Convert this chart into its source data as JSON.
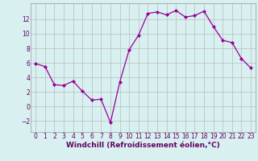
{
  "x": [
    0,
    1,
    2,
    3,
    4,
    5,
    6,
    7,
    8,
    9,
    10,
    11,
    12,
    13,
    14,
    15,
    16,
    17,
    18,
    19,
    20,
    21,
    22,
    23
  ],
  "y": [
    5.9,
    5.5,
    3.0,
    2.9,
    3.5,
    2.1,
    0.9,
    1.0,
    -2.2,
    3.4,
    7.8,
    9.8,
    12.8,
    13.0,
    12.6,
    13.2,
    12.3,
    12.5,
    13.1,
    11.0,
    9.1,
    8.8,
    6.6,
    5.3
  ],
  "line_color": "#990099",
  "marker": "D",
  "markersize": 2,
  "linewidth": 0.9,
  "xlabel": "Windchill (Refroidissement éolien,°C)",
  "xlabel_fontsize": 6.5,
  "bg_color": "#d8f0f0",
  "grid_color": "#bbbbbb",
  "xlim": [
    -0.5,
    23.5
  ],
  "ylim": [
    -3.5,
    14.2
  ],
  "yticks": [
    -2,
    0,
    2,
    4,
    6,
    8,
    10,
    12
  ],
  "xticks": [
    0,
    1,
    2,
    3,
    4,
    5,
    6,
    7,
    8,
    9,
    10,
    11,
    12,
    13,
    14,
    15,
    16,
    17,
    18,
    19,
    20,
    21,
    22,
    23
  ],
  "tick_fontsize": 5.5,
  "label_color": "#660066"
}
